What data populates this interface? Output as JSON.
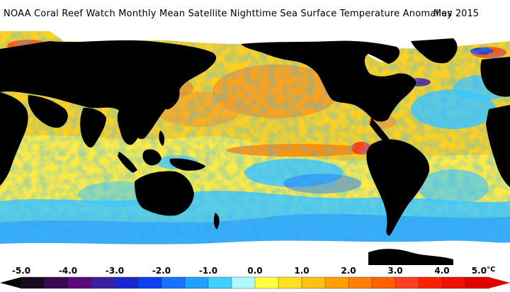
{
  "header": {
    "title": "NOAA Coral Reef Watch Monthly Mean Satellite Nighttime Sea Surface Temperature Anomalies",
    "date": "May 2015"
  },
  "legend": {
    "unit": "°C",
    "ticks": [
      {
        "value": -5.0,
        "label": "-5.0"
      },
      {
        "value": -4.0,
        "label": "-4.0"
      },
      {
        "value": -3.0,
        "label": "-3.0"
      },
      {
        "value": -2.0,
        "label": "-2.0"
      },
      {
        "value": -1.0,
        "label": "-1.0"
      },
      {
        "value": 0.0,
        "label": "0.0"
      },
      {
        "value": 1.0,
        "label": "1.0"
      },
      {
        "value": 2.0,
        "label": "2.0"
      },
      {
        "value": 3.0,
        "label": "3.0"
      },
      {
        "value": 4.0,
        "label": "4.0"
      },
      {
        "value": 5.0,
        "label": "5.0"
      }
    ],
    "swatches": [
      "#1a0a1f",
      "#3a0a50",
      "#5a0a7a",
      "#3a20a0",
      "#1a28d0",
      "#0a40f0",
      "#1a70ff",
      "#20a0ff",
      "#40d0ff",
      "#b0f8ff",
      "#ffff40",
      "#ffe020",
      "#ffc010",
      "#ffa000",
      "#ff8000",
      "#ff6000",
      "#ff4020",
      "#ff2000",
      "#f01000",
      "#e00000"
    ]
  },
  "map_colors": {
    "land": "#000000",
    "ice": "#ffffff",
    "warm_bg": "#ffd020",
    "neutral": "#ffff55",
    "cool": "#40c8ff",
    "cold": "#1a70ff",
    "hot": "#ff8a10",
    "very_hot": "#ff4010"
  }
}
